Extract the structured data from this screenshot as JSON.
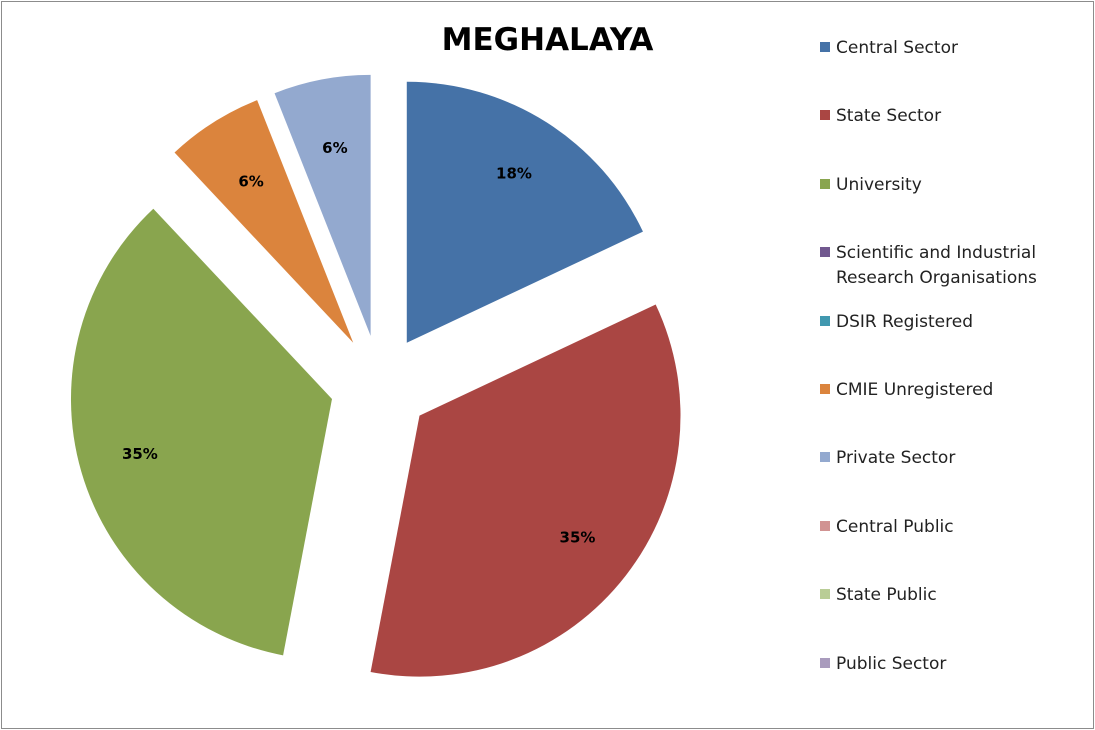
{
  "chart_data": {
    "type": "pie",
    "title": "MEGHALAYA",
    "categories": [
      "Central Sector",
      "State Sector",
      "University",
      "Scientific and Industrial Research Organisations",
      "DSIR Registered",
      "CMIE Unregistered",
      "Private Sector",
      "Central Public",
      "State Public",
      "Public Sector"
    ],
    "values": [
      18,
      35,
      35,
      0,
      0,
      6,
      6,
      0,
      0,
      0
    ],
    "data_labels": [
      "18%",
      "35%",
      "35%",
      "",
      "",
      "6%",
      "6%",
      "",
      "",
      ""
    ],
    "colors": [
      "#4572a7",
      "#aa4643",
      "#89a54e",
      "#71588f",
      "#4198af",
      "#db843d",
      "#93a9cf",
      "#d19392",
      "#b9cd96",
      "#a99bbd"
    ],
    "exploded": true,
    "legend_position": "right"
  }
}
